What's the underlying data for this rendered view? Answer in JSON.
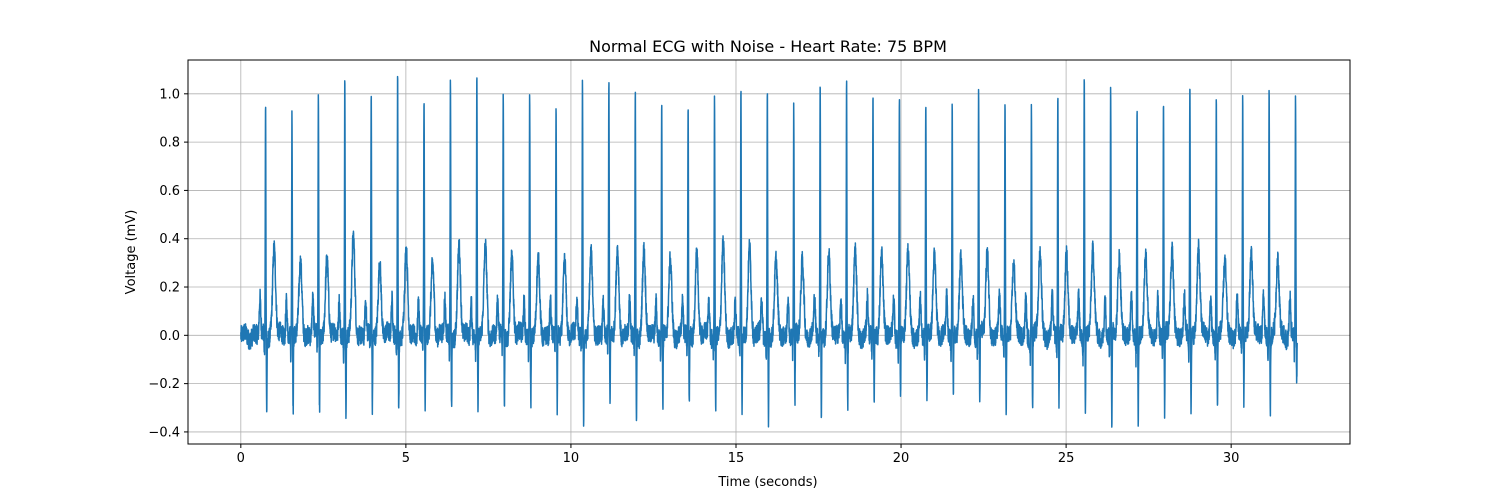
{
  "chart_data": {
    "type": "line",
    "title": "Normal ECG with Noise - Heart Rate: 75 BPM",
    "xlabel": "Time (seconds)",
    "ylabel": "Voltage (mV)",
    "xlim": [
      -1.6,
      33.6
    ],
    "ylim": [
      -0.45,
      1.14
    ],
    "x_ticks": [
      0,
      5,
      10,
      15,
      20,
      25,
      30
    ],
    "x_tick_labels": [
      "0",
      "5",
      "10",
      "15",
      "20",
      "25",
      "30"
    ],
    "y_ticks": [
      -0.4,
      -0.2,
      0.0,
      0.2,
      0.4,
      0.6,
      0.8,
      1.0
    ],
    "y_tick_labels": [
      "−0.4",
      "−0.2",
      "0.0",
      "0.2",
      "0.4",
      "0.6",
      "0.8",
      "1.0"
    ],
    "grid": true,
    "legend": "none",
    "line_color": "#1f77b4",
    "series": [
      {
        "beats": {
          "r_peak_times": [
            0.75,
            1.55,
            2.35,
            3.15,
            3.95,
            4.75,
            5.55,
            6.35,
            7.15,
            7.95,
            8.75,
            9.55,
            10.35,
            11.15,
            11.95,
            12.75,
            13.55,
            14.35,
            15.15,
            15.95,
            16.75,
            17.55,
            18.35,
            19.15,
            19.95,
            20.75,
            21.55,
            22.35,
            23.15,
            23.95,
            24.75,
            25.55,
            26.35,
            27.15,
            27.95,
            28.75,
            29.55,
            30.35,
            31.15,
            31.95
          ],
          "r_peak_values": [
            0.96,
            0.93,
            0.99,
            1.08,
            0.99,
            1.07,
            1.0,
            1.04,
            1.05,
            1.0,
            1.01,
            0.95,
            1.05,
            1.06,
            1.0,
            0.99,
            0.92,
            0.99,
            0.99,
            0.99,
            0.94,
            1.05,
            1.04,
            1.02,
            1.0,
            0.98,
            0.95,
            1.02,
            0.99,
            0.95,
            0.98,
            1.08,
            1.02,
            0.96,
            0.99,
            1.08,
            0.99,
            0.98,
            1.02,
            0.98
          ],
          "s_trough_values": [
            -0.3,
            -0.31,
            -0.3,
            -0.31,
            -0.31,
            -0.3,
            -0.31,
            -0.3,
            -0.33,
            -0.28,
            -0.28,
            -0.31,
            -0.34,
            -0.31,
            -0.34,
            -0.3,
            -0.3,
            -0.3,
            -0.34,
            -0.37,
            -0.3,
            -0.34,
            -0.32,
            -0.3,
            -0.28,
            -0.3,
            -0.21,
            -0.28,
            -0.33,
            -0.31,
            -0.3,
            -0.3,
            -0.38,
            -0.34,
            -0.32,
            -0.3,
            -0.3,
            -0.28,
            -0.3,
            -0.22
          ],
          "t_wave_values": [
            0.36,
            0.3,
            0.32,
            0.4,
            0.3,
            0.34,
            0.3,
            0.36,
            0.36,
            0.32,
            0.3,
            0.31,
            0.32,
            0.35,
            0.34,
            0.3,
            0.33,
            0.36,
            0.37,
            0.3,
            0.31,
            0.33,
            0.34,
            0.34,
            0.34,
            0.34,
            0.31,
            0.35,
            0.3,
            0.34,
            0.35,
            0.35,
            0.34,
            0.33,
            0.36,
            0.37,
            0.31,
            0.35,
            0.31,
            0.28
          ]
        },
        "x_range": [
          0,
          32.0
        ],
        "baseline": 0.0,
        "noise_amplitude": 0.04
      }
    ]
  }
}
